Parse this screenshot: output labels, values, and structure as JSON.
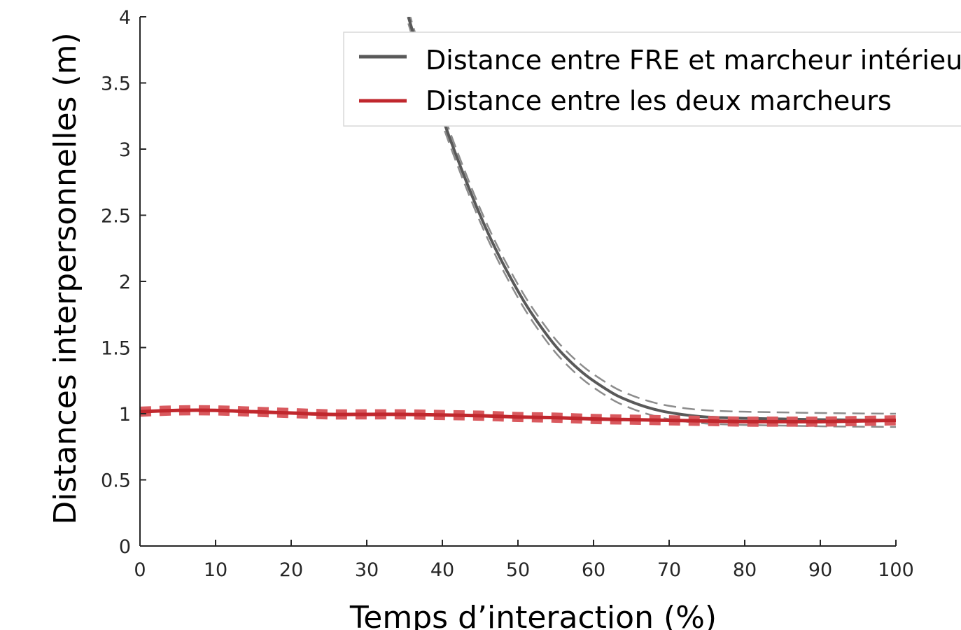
{
  "chart_data": {
    "type": "line",
    "xlabel": "Temps d’interaction (%)",
    "ylabel": "Distances interpersonnelles (m)",
    "xlim": [
      0,
      100
    ],
    "ylim": [
      0,
      4
    ],
    "x_ticks": [
      0,
      10,
      20,
      30,
      40,
      50,
      60,
      70,
      80,
      90,
      100
    ],
    "y_ticks": [
      0,
      0.5,
      1,
      1.5,
      2,
      2.5,
      3,
      3.5,
      4
    ],
    "y_tick_labels": [
      "0",
      "0.5",
      "1",
      "1.5",
      "2",
      "2.5",
      "3",
      "3.5",
      "4"
    ],
    "grid": false,
    "legend_position": "top-right",
    "series": [
      {
        "name": "Distance entre FRE et marcheur intérieur",
        "color": "#595959",
        "band_color": "#8c8c8c",
        "x": [
          35.5,
          37,
          39,
          41,
          43,
          45,
          47,
          49,
          51,
          53,
          55,
          57,
          59,
          61,
          63,
          65,
          67,
          69,
          71,
          73,
          75,
          77,
          80,
          85,
          90,
          95,
          100
        ],
        "y": [
          4.0,
          3.72,
          3.4,
          3.08,
          2.78,
          2.5,
          2.25,
          2.03,
          1.83,
          1.66,
          1.51,
          1.39,
          1.29,
          1.21,
          1.14,
          1.09,
          1.05,
          1.02,
          1.0,
          0.985,
          0.975,
          0.97,
          0.965,
          0.96,
          0.955,
          0.952,
          0.95
        ],
        "band": 0.05
      },
      {
        "name": "Distance entre les deux marcheurs",
        "color": "#c0272d",
        "band_color": "#d9595e",
        "x": [
          0,
          5,
          10,
          15,
          20,
          25,
          30,
          35,
          40,
          45,
          50,
          55,
          60,
          65,
          70,
          75,
          80,
          85,
          90,
          95,
          100
        ],
        "y": [
          1.015,
          1.025,
          1.025,
          1.015,
          1.005,
          0.995,
          0.995,
          0.995,
          0.99,
          0.985,
          0.975,
          0.97,
          0.96,
          0.955,
          0.95,
          0.945,
          0.94,
          0.94,
          0.94,
          0.945,
          0.95
        ],
        "band": 0.02
      }
    ]
  }
}
